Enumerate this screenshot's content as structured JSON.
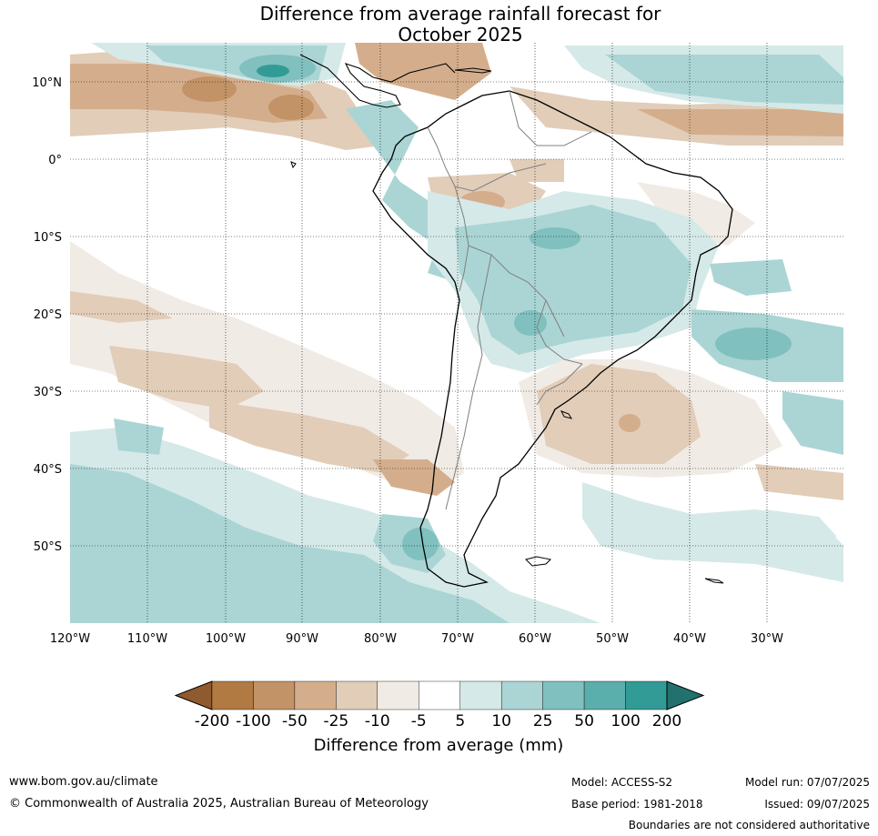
{
  "title_line1": "Difference from average rainfall forecast for",
  "title_line2": "October 2025",
  "map": {
    "lon_labels": [
      "120°W",
      "110°W",
      "100°W",
      "90°W",
      "80°W",
      "70°W",
      "60°W",
      "50°W",
      "40°W",
      "30°W"
    ],
    "lat_labels": [
      "10°N",
      "0°",
      "10°S",
      "20°S",
      "30°S",
      "40°S",
      "50°S"
    ]
  },
  "colorbar": {
    "title": "Difference from average (mm)",
    "tick_labels": [
      "-200",
      "-100",
      "-50",
      "-25",
      "-10",
      "-5",
      "5",
      "10",
      "25",
      "50",
      "100",
      "200"
    ],
    "colors": [
      "#8f5a2d",
      "#b07a42",
      "#c29366",
      "#d4ae8c",
      "#e2cdb9",
      "#f1ebe5",
      "#ffffff",
      "#d5e9e8",
      "#aad5d4",
      "#80c0bf",
      "#5aaeab",
      "#339b96",
      "#22716e"
    ]
  },
  "footer": {
    "website": "www.bom.gov.au/climate",
    "copyright": "© Commonwealth of Australia 2025, Australian Bureau of Meteorology",
    "model": "Model: ACCESS-S2",
    "base_period": "Base period: 1981-2018",
    "model_run": "Model run: 07/07/2025",
    "issued": "Issued: 09/07/2025",
    "disclaimer": "Boundaries are not considered authoritative"
  }
}
